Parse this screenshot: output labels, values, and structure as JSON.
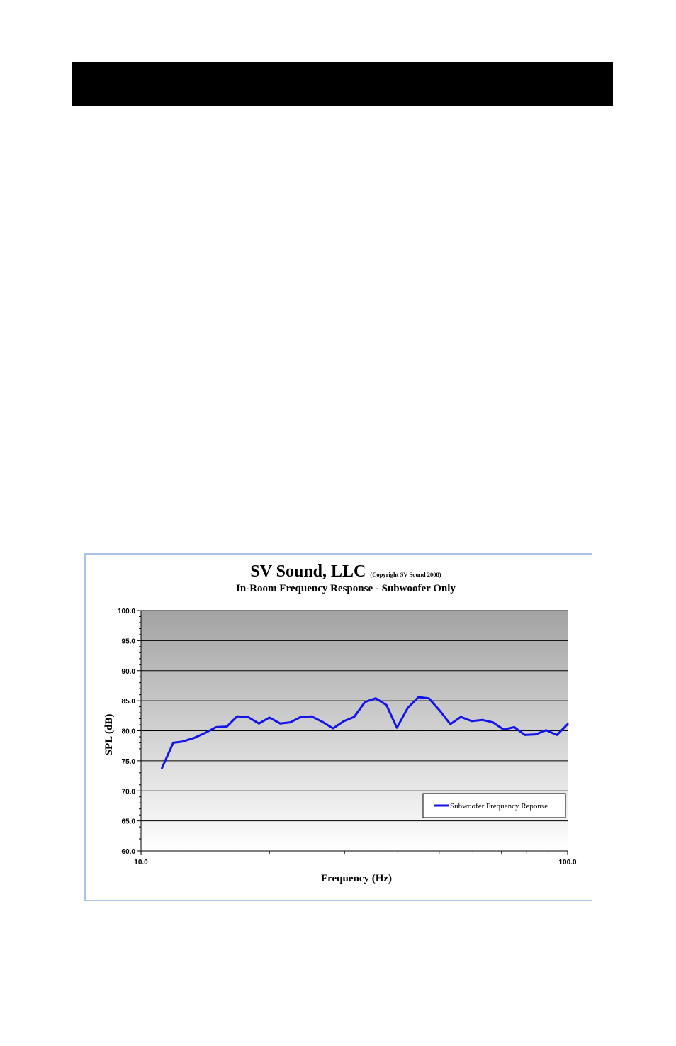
{
  "colors": {
    "header_bar": "#000000",
    "frame_border": "#a9c4e8",
    "series_line": "#1414e6",
    "plot_bg_top": "#a3a3a3",
    "plot_bg_bottom": "#ffffff",
    "gridline": "#000000"
  },
  "chart_data": {
    "type": "line",
    "title": "SV Sound, LLC",
    "title_note": "(Copyright SV Sound 2008)",
    "subtitle": "In-Room Frequency Response - Subwoofer Only",
    "xlabel": "Frequency (Hz)",
    "ylabel": "SPL (dB)",
    "x_scale": "log",
    "xlim": [
      10,
      100
    ],
    "ylim": [
      60,
      100
    ],
    "x_ticks": [
      {
        "value": 10,
        "label": "10.0"
      },
      {
        "value": 100,
        "label": "100.0"
      }
    ],
    "y_ticks": [
      {
        "value": 60,
        "label": "60.0"
      },
      {
        "value": 65,
        "label": "65.0"
      },
      {
        "value": 70,
        "label": "70.0"
      },
      {
        "value": 75,
        "label": "75.0"
      },
      {
        "value": 80,
        "label": "80.0"
      },
      {
        "value": 85,
        "label": "85.0"
      },
      {
        "value": 90,
        "label": "90.0"
      },
      {
        "value": 95,
        "label": "95.0"
      },
      {
        "value": 100,
        "label": "100.0"
      }
    ],
    "grid": true,
    "legend_position": "bottom-right",
    "series": [
      {
        "name": "Subwoofer Frequency Reponse",
        "x": [
          11.2,
          11.9,
          12.5,
          13.3,
          14.1,
          15.0,
          15.9,
          16.8,
          17.8,
          18.9,
          20.0,
          21.2,
          22.4,
          23.7,
          25.1,
          26.6,
          28.2,
          29.9,
          31.6,
          33.5,
          35.5,
          37.6,
          39.8,
          42.2,
          44.7,
          47.3,
          50.1,
          53.1,
          56.2,
          59.6,
          63.1,
          66.8,
          70.8,
          75.0,
          79.4,
          84.1,
          89.1,
          94.4,
          100.0
        ],
        "y": [
          73.8,
          78.0,
          78.2,
          78.8,
          79.6,
          80.6,
          80.7,
          82.4,
          82.3,
          81.2,
          82.2,
          81.2,
          81.4,
          82.3,
          82.4,
          81.5,
          80.4,
          81.6,
          82.3,
          84.8,
          85.4,
          84.3,
          80.5,
          83.8,
          85.6,
          85.4,
          83.4,
          81.1,
          82.3,
          81.6,
          81.8,
          81.4,
          80.2,
          80.6,
          79.3,
          79.4,
          80.1,
          79.3,
          81.1
        ]
      }
    ]
  }
}
